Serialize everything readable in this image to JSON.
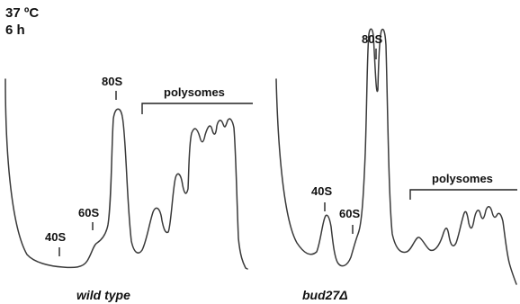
{
  "conditions": {
    "temperature": "37 ºC",
    "time": "6 h"
  },
  "colors": {
    "trace": "#3a3a3a",
    "text": "#111111"
  },
  "chart_data": [
    {
      "type": "line",
      "caption": "wild type",
      "peaks": [
        {
          "label": "40S"
        },
        {
          "label": "60S"
        },
        {
          "label": "80S"
        }
      ],
      "bracket_label": "polysomes"
    },
    {
      "type": "line",
      "caption": "bud27Δ",
      "peaks": [
        {
          "label": "40S"
        },
        {
          "label": "60S"
        },
        {
          "label": "80S"
        }
      ],
      "bracket_label": "polysomes"
    }
  ]
}
